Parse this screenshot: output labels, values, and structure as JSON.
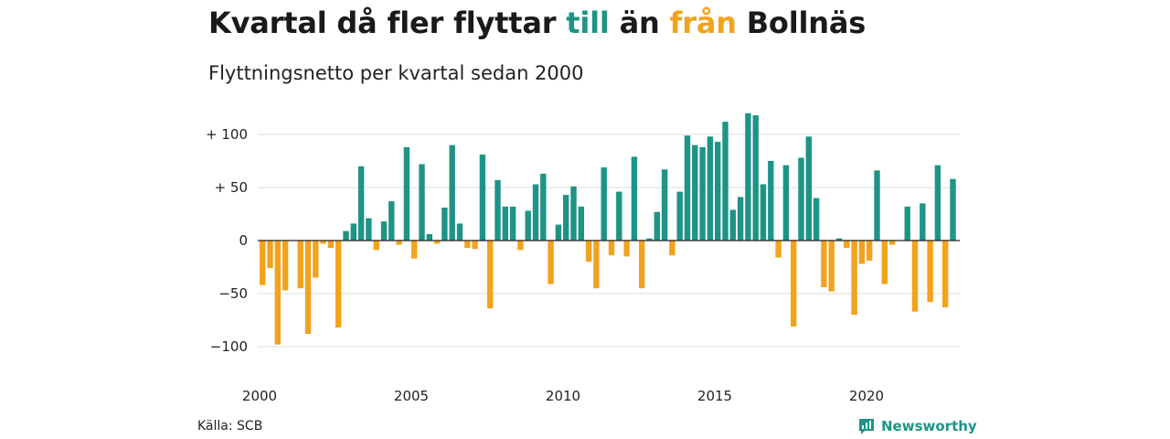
{
  "header": {
    "title_pre": "Kvartal då fler flyttar ",
    "title_pos": "till",
    "title_mid": " än ",
    "title_neg": "från",
    "title_post": " Bollnäs",
    "subtitle": "Flyttningsnetto per kvartal sedan 2000"
  },
  "footer": {
    "source": "Källa: SCB",
    "brand": "Newsworthy"
  },
  "colors": {
    "positive": "#1d9486",
    "negative": "#f2a31d",
    "grid": "#dddddd",
    "zero": "#222222"
  },
  "chart_data": {
    "type": "bar",
    "title": "Kvartal då fler flyttar till än från Bollnäs",
    "subtitle": "Flyttningsnetto per kvartal sedan 2000",
    "xlabel": "",
    "ylabel": "",
    "ylim": [
      -100,
      120
    ],
    "yticks": [
      100,
      50,
      0,
      -50,
      -100
    ],
    "ytick_labels": [
      "+ 100",
      "+  50",
      "0",
      "−50",
      "−100"
    ],
    "xticks": [
      "2000",
      "2005",
      "2010",
      "2015",
      "2020"
    ],
    "grid": true,
    "start_year": 2000,
    "values": [
      -42,
      -26,
      -98,
      -47,
      0,
      -45,
      -88,
      -35,
      -3,
      -7,
      -82,
      9,
      16,
      70,
      21,
      -9,
      18,
      37,
      -4,
      88,
      -17,
      72,
      6,
      -3,
      31,
      90,
      16,
      -7,
      -8,
      81,
      -64,
      57,
      32,
      32,
      -9,
      28,
      53,
      63,
      -41,
      15,
      43,
      51,
      32,
      -20,
      -45,
      69,
      -14,
      46,
      -15,
      79,
      -45,
      2,
      27,
      67,
      -14,
      46,
      99,
      90,
      88,
      98,
      93,
      112,
      29,
      41,
      120,
      118,
      53,
      75,
      -16,
      71,
      -81,
      78,
      98,
      40,
      -44,
      -48,
      2,
      -7,
      -70,
      -22,
      -19,
      66,
      -41,
      -4,
      0,
      32,
      -67,
      35,
      -58,
      71,
      -63,
      58
    ]
  }
}
